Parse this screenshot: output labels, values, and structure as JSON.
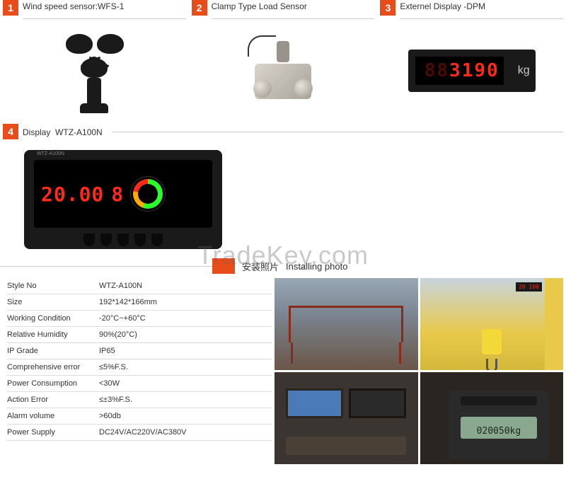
{
  "products": [
    {
      "num": "1",
      "title": "Wind speed sensor:WFS-1"
    },
    {
      "num": "2",
      "title": "Clamp Type Load Sensor"
    },
    {
      "num": "3",
      "title": "Externel Display -DPM"
    },
    {
      "num": "4",
      "title_prefix": "Display",
      "title_model": "WTZ-A100N"
    }
  ],
  "dpm": {
    "dim": "88",
    "digits": "3190",
    "unit": "kg"
  },
  "a100n": {
    "main": "20.00",
    "sub": "8",
    "label": "WTZ-A100N"
  },
  "install": {
    "cn": "安装照片",
    "en": "Installing photo"
  },
  "specs": [
    {
      "label": "Style No",
      "value": "WTZ-A100N"
    },
    {
      "label": "Size",
      "value": "192*142*166mm"
    },
    {
      "label": "Working Condition",
      "value": "-20°C~+60°C"
    },
    {
      "label": "Relative Humidity",
      "value": "90%(20°C)"
    },
    {
      "label": "IP Grade",
      "value": "IP65"
    },
    {
      "label": "Comprehensive error",
      "value": "≤5%F.S."
    },
    {
      "label": "Power Consumption",
      "value": "<30W"
    },
    {
      "label": "Action Error",
      "value": "≤±3%F.S."
    },
    {
      "label": "Alarm volume",
      "value": ">60db"
    },
    {
      "label": "Power Supply",
      "value": "DC24V/AC220V/AC380V"
    }
  ],
  "photo2": {
    "crane_display": "20 100"
  },
  "photo4": {
    "lcd": "020050kg"
  },
  "watermark": "TradeKey.com",
  "colors": {
    "accent": "#e84c1a",
    "led": "#ff2a1a"
  }
}
